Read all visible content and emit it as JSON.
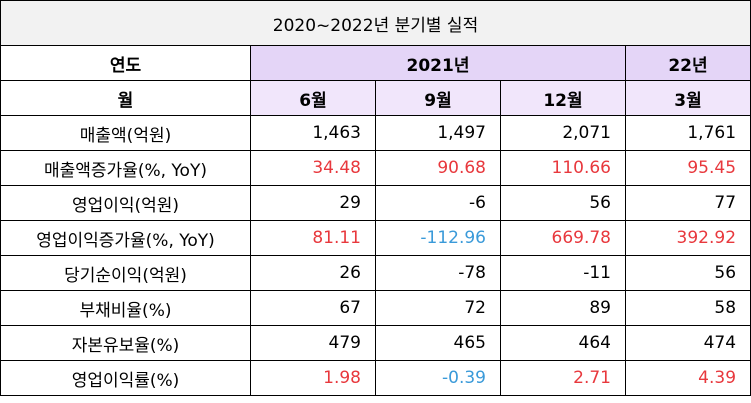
{
  "title": "2020~2022년 분기별 실적",
  "headers": {
    "row1_label": "연도",
    "year_2021": "2021년",
    "year_22": "22년",
    "row2_label": "월",
    "months": [
      "6월",
      "9월",
      "12월",
      "3월"
    ]
  },
  "rows": [
    {
      "label": "매출액(억원)",
      "values": [
        "1,463",
        "1,497",
        "2,071",
        "1,761"
      ],
      "colors": [
        "",
        "",
        "",
        ""
      ]
    },
    {
      "label": "매출액증가율(%, YoY)",
      "values": [
        "34.48",
        "90.68",
        "110.66",
        "95.45"
      ],
      "colors": [
        "pos",
        "pos",
        "pos",
        "pos"
      ]
    },
    {
      "label": "영업이익(억원)",
      "values": [
        "29",
        "-6",
        "56",
        "77"
      ],
      "colors": [
        "",
        "",
        "",
        ""
      ]
    },
    {
      "label": "영업이익증가율(%, YoY)",
      "values": [
        "81.11",
        "-112.96",
        "669.78",
        "392.92"
      ],
      "colors": [
        "pos",
        "neg",
        "pos",
        "pos"
      ]
    },
    {
      "label": "당기순이익(억원)",
      "values": [
        "26",
        "-78",
        "-11",
        "56"
      ],
      "colors": [
        "",
        "",
        "",
        ""
      ]
    },
    {
      "label": "부채비율(%)",
      "values": [
        "67",
        "72",
        "89",
        "58"
      ],
      "colors": [
        "",
        "",
        "",
        ""
      ]
    },
    {
      "label": "자본유보율(%)",
      "values": [
        "479",
        "465",
        "464",
        "474"
      ],
      "colors": [
        "",
        "",
        "",
        ""
      ]
    },
    {
      "label": "영업이익률(%)",
      "values": [
        "1.98",
        "-0.39",
        "2.71",
        "4.39"
      ],
      "colors": [
        "pos",
        "neg",
        "pos",
        "pos"
      ]
    }
  ],
  "colors": {
    "positive": "#e8383d",
    "negative": "#3a9ad9",
    "header_fill": "#e4d5f7",
    "header_fill_light": "#f1e6fb",
    "title_fill": "#f2f2f2"
  }
}
